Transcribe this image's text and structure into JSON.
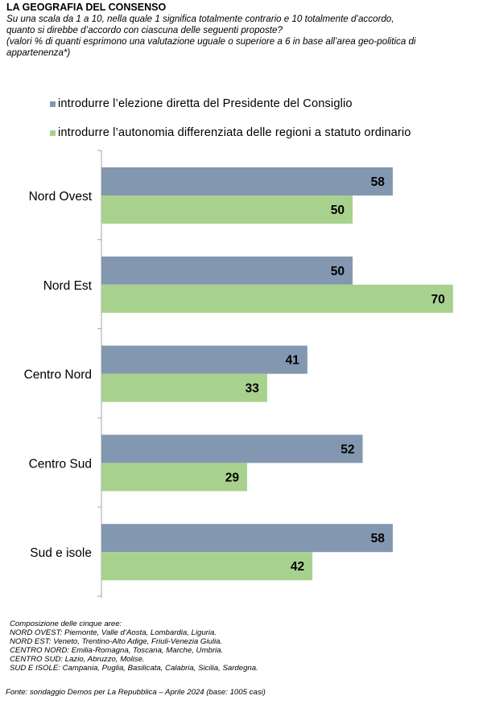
{
  "title": "LA GEOGRAFIA DEL CONSENSO",
  "question": [
    "Su una scala da 1 a 10, nella quale 1 significa totalmente contrario e 10 totalmente d’accordo,",
    "quanto si direbbe d’accordo con ciascuna delle seguenti proposte?",
    "(valori % di quanti esprimono una valutazione uguale o superiore a 6 in base all’area geo-politica di",
    "appartenenza*)"
  ],
  "colors": {
    "series1": "#8497b0",
    "series2": "#a9d18e",
    "axis": "#a6a6a6"
  },
  "chart_data": {
    "type": "bar",
    "orientation": "horizontal",
    "categories": [
      "Nord Ovest",
      "Nord Est",
      "Centro Nord",
      "Centro Sud",
      "Sud e isole"
    ],
    "series": [
      {
        "name": "introdurre  l’elezione  diretta  del  Presidente  del  Consiglio",
        "values": [
          58,
          50,
          41,
          52,
          58
        ]
      },
      {
        "name": "introdurre  l’autonomia  differenziata  delle  regioni  a  statuto  ordinario",
        "values": [
          50,
          70,
          33,
          29,
          42
        ]
      }
    ],
    "xlim": [
      0,
      70
    ],
    "grid": false,
    "legend_position": "top",
    "data_labels": true
  },
  "notes": [
    "Composizione delle cinque aree:",
    "NORD OVEST: Piemonte, Valle d’Aosta, Lombardia, Liguria.",
    "NORD EST: Veneto, Trentino-Alto Adige, Friuli-Venezia Giulia.",
    "CENTRO NORD: Emilia-Romagna, Toscana, Marche, Umbria.",
    "CENTRO SUD: Lazio, Abruzzo, Molise.",
    "SUD E ISOLE: Campania, Puglia, Basilicata, Calabria, Sicilia, Sardegna."
  ],
  "source": "Fonte: sondaggio Demos per La Repubblica – Aprile 2024 (base: 1005 casi)"
}
